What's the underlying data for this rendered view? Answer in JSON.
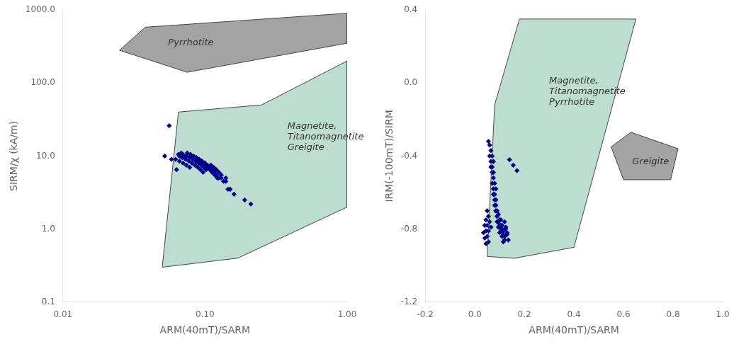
{
  "chart_data": [
    {
      "type": "scatter",
      "xlabel": "ARM(40mT)/SARM",
      "ylabel": "SIRM/χ (kA/m)",
      "log": true,
      "grid": false,
      "xlim": [
        0.01,
        1.0
      ],
      "ylim": [
        0.1,
        1000.0
      ],
      "xticks": [
        0.01,
        {
          "value": 0.1,
          "label": "0.10"
        },
        {
          "value": 1.0,
          "label": "1.00"
        }
      ],
      "yticks": [
        0.1,
        {
          "value": 1.0,
          "label": "1.0"
        },
        {
          "value": 10.0,
          "label": "10.0"
        },
        {
          "value": 100.0,
          "label": "100.0"
        },
        {
          "value": 1000.0,
          "label": "1000.0"
        }
      ],
      "series": [
        {
          "type": "polygon",
          "color": "#999999",
          "x": [
            0.025,
            0.038,
            1.0,
            1.0,
            0.075
          ],
          "y": [
            280,
            580,
            900,
            350,
            140
          ]
        },
        {
          "type": "polygon",
          "color": "#b5d9cb",
          "x": [
            0.05,
            0.065,
            0.25,
            1.0,
            1.0,
            0.17
          ],
          "y": [
            0.3,
            40,
            50,
            200,
            2,
            0.4
          ]
        },
        {
          "type": "scatter",
          "color": "#00008B",
          "marker": "diamond",
          "x": [
            0.065,
            0.068,
            0.072,
            0.062,
            0.066,
            0.07,
            0.074,
            0.078,
            0.063,
            0.066,
            0.069,
            0.073,
            0.077,
            0.081,
            0.085,
            0.089,
            0.093,
            0.097,
            0.07,
            0.074,
            0.078,
            0.082,
            0.086,
            0.09,
            0.094,
            0.098,
            0.102,
            0.075,
            0.079,
            0.083,
            0.087,
            0.091,
            0.095,
            0.099,
            0.103,
            0.107,
            0.08,
            0.084,
            0.088,
            0.092,
            0.096,
            0.1,
            0.104,
            0.108,
            0.112,
            0.085,
            0.089,
            0.093,
            0.097,
            0.101,
            0.105,
            0.109,
            0.113,
            0.117,
            0.09,
            0.094,
            0.098,
            0.102,
            0.106,
            0.11,
            0.114,
            0.118,
            0.122,
            0.095,
            0.099,
            0.103,
            0.107,
            0.111,
            0.115,
            0.125,
            0.135,
            0.145,
            0.1,
            0.104,
            0.108,
            0.112,
            0.116,
            0.12,
            0.13,
            0.14,
            0.15,
            0.11,
            0.115,
            0.12,
            0.125,
            0.13,
            0.14,
            0.15,
            0.16,
            0.19,
            0.21,
            0.052,
            0.058,
            0.056
          ],
          "y": [
            10.5,
            11.0,
            9.5,
            9.0,
            8.5,
            8.0,
            7.5,
            7.0,
            6.5,
            10.0,
            9.5,
            9.0,
            8.5,
            8.0,
            7.5,
            7.0,
            6.5,
            6.0,
            10.5,
            10.0,
            9.5,
            9.0,
            8.5,
            8.0,
            7.5,
            7.0,
            6.5,
            11.0,
            10.5,
            10.0,
            9.5,
            9.0,
            8.5,
            8.0,
            7.5,
            7.0,
            10.0,
            9.5,
            9.0,
            8.5,
            8.0,
            7.5,
            7.0,
            6.5,
            6.0,
            9.5,
            9.0,
            8.5,
            8.0,
            7.5,
            7.0,
            6.5,
            6.0,
            5.5,
            9.0,
            8.5,
            8.0,
            7.5,
            7.0,
            6.5,
            6.0,
            5.5,
            5.0,
            8.5,
            8.0,
            7.5,
            7.0,
            6.5,
            6.0,
            5.0,
            4.5,
            3.5,
            8.0,
            7.5,
            7.0,
            6.5,
            6.0,
            5.5,
            5.0,
            4.5,
            3.5,
            7.5,
            7.0,
            6.5,
            6.0,
            5.5,
            5.0,
            3.5,
            3.0,
            2.5,
            2.2,
            10.0,
            9.0,
            26.0
          ]
        }
      ],
      "annotations": [
        {
          "text": "Pyrrhotite",
          "x": 0.055,
          "y": 350
        },
        {
          "text": "Magnetite,\nTitanomagnetite\nGreigite",
          "x": 0.38,
          "y": 18
        }
      ]
    },
    {
      "type": "scatter",
      "xlabel": "ARM(40mT)/SARM",
      "ylabel": "IRM(-100mT)/SIRM",
      "grid": false,
      "xlim": [
        -0.2,
        1.0
      ],
      "ylim": [
        -1.2,
        0.4
      ],
      "xticks": [
        -0.2,
        {
          "value": 0.0,
          "label": "0.0"
        },
        0.2,
        0.4,
        0.6,
        0.8,
        {
          "value": 1.0,
          "label": "1.0"
        }
      ],
      "yticks": [
        -1.2,
        -0.8,
        -0.4,
        {
          "value": 0.0,
          "label": "0.0"
        },
        0.4
      ],
      "series": [
        {
          "type": "polygon",
          "color": "#b5d9cb",
          "x": [
            0.05,
            0.08,
            0.18,
            0.65,
            0.4,
            0.16
          ],
          "y": [
            -0.95,
            -0.12,
            0.35,
            0.35,
            -0.9,
            -0.96
          ]
        },
        {
          "type": "polygon",
          "color": "#999999",
          "x": [
            0.55,
            0.63,
            0.82,
            0.79,
            0.6
          ],
          "y": [
            -0.35,
            -0.27,
            -0.36,
            -0.53,
            -0.53
          ]
        },
        {
          "type": "scatter",
          "color": "#00008B",
          "marker": "diamond",
          "x": [
            0.055,
            0.06,
            0.065,
            0.07,
            0.075,
            0.06,
            0.065,
            0.07,
            0.075,
            0.065,
            0.07,
            0.075,
            0.08,
            0.085,
            0.07,
            0.075,
            0.08,
            0.085,
            0.075,
            0.08,
            0.085,
            0.09,
            0.08,
            0.085,
            0.09,
            0.095,
            0.085,
            0.09,
            0.095,
            0.1,
            0.09,
            0.095,
            0.1,
            0.095,
            0.1,
            0.105,
            0.11,
            0.1,
            0.105,
            0.11,
            0.115,
            0.105,
            0.11,
            0.115,
            0.12,
            0.11,
            0.115,
            0.12,
            0.12,
            0.125,
            0.13,
            0.125,
            0.13,
            0.135,
            0.05,
            0.055,
            0.06,
            0.065,
            0.045,
            0.05,
            0.055,
            0.04,
            0.045,
            0.05,
            0.055,
            0.035,
            0.04,
            0.045,
            0.14,
            0.155,
            0.17
          ],
          "y": [
            -0.32,
            -0.34,
            -0.37,
            -0.4,
            -0.43,
            -0.4,
            -0.43,
            -0.46,
            -0.49,
            -0.46,
            -0.49,
            -0.52,
            -0.55,
            -0.58,
            -0.55,
            -0.58,
            -0.61,
            -0.64,
            -0.61,
            -0.64,
            -0.67,
            -0.7,
            -0.67,
            -0.7,
            -0.73,
            -0.76,
            -0.7,
            -0.73,
            -0.76,
            -0.79,
            -0.76,
            -0.79,
            -0.82,
            -0.72,
            -0.75,
            -0.78,
            -0.81,
            -0.78,
            -0.81,
            -0.84,
            -0.87,
            -0.75,
            -0.78,
            -0.81,
            -0.84,
            -0.8,
            -0.83,
            -0.86,
            -0.76,
            -0.79,
            -0.82,
            -0.8,
            -0.83,
            -0.86,
            -0.7,
            -0.73,
            -0.76,
            -0.79,
            -0.75,
            -0.78,
            -0.81,
            -0.78,
            -0.81,
            -0.84,
            -0.87,
            -0.82,
            -0.85,
            -0.88,
            -0.42,
            -0.45,
            -0.48
          ]
        }
      ],
      "annotations": [
        {
          "text": "Magnetite,\nTitanomagnetite\nPyrrhotite",
          "x": 0.3,
          "y": -0.05
        },
        {
          "text": "Greigite",
          "x": 0.635,
          "y": -0.43
        }
      ]
    }
  ]
}
